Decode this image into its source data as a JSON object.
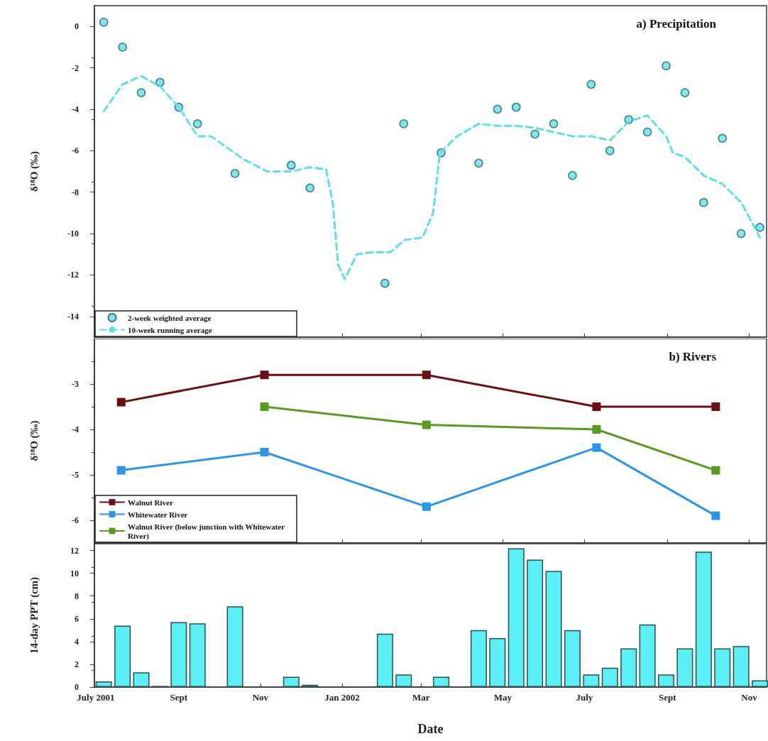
{
  "chart_data": [
    {
      "type": "scatter",
      "title": "a) Precipitation",
      "ylabel": "δ¹⁸O (‰)",
      "xlim": [
        "2001-06-30",
        "2002-11-14"
      ],
      "xticks": [
        {
          "value": "2001-07-01",
          "label": null
        },
        {
          "value": "2001-09-01",
          "label": null
        },
        {
          "value": "2001-11-01",
          "label": null
        },
        {
          "value": "2002-01-01",
          "label": null
        },
        {
          "value": "2002-03-01",
          "label": null
        },
        {
          "value": "2002-05-01",
          "label": null
        },
        {
          "value": "2002-07-01",
          "label": null
        },
        {
          "value": "2002-09-01",
          "label": null
        },
        {
          "value": "2002-11-01",
          "label": null
        }
      ],
      "ylim": [
        -15,
        1
      ],
      "yticks": [
        -14,
        -12,
        -10,
        -8,
        -6,
        -4,
        -2,
        0
      ],
      "tick_labels": "y",
      "legend": "bottom left",
      "grid": false,
      "series": [
        {
          "type": "scatter",
          "name": "2-week weighted average",
          "color": "#5ce1e6",
          "marker": "circle",
          "x": [
            "2001-07-07",
            "2001-07-21",
            "2001-08-04",
            "2001-08-18",
            "2001-09-01",
            "2001-09-15",
            "2001-10-13",
            "2001-11-24",
            "2001-12-08",
            "2002-02-02",
            "2002-02-16",
            "2002-03-16",
            "2002-04-13",
            "2002-04-27",
            "2002-05-11",
            "2002-05-25",
            "2002-06-08",
            "2002-06-22",
            "2002-07-06",
            "2002-07-20",
            "2002-08-03",
            "2002-08-17",
            "2002-08-31",
            "2002-09-14",
            "2002-09-28",
            "2002-10-12",
            "2002-10-26",
            "2002-11-09"
          ],
          "values": [
            0.2,
            -1.0,
            -3.2,
            -2.7,
            -3.9,
            -4.7,
            -7.1,
            -6.7,
            -7.8,
            -12.4,
            -4.7,
            -6.1,
            -6.6,
            -4.0,
            -3.9,
            -5.2,
            -4.7,
            -7.2,
            -2.8,
            -6.0,
            -4.5,
            -5.1,
            -1.9,
            -3.2,
            -8.5,
            -5.4,
            -10.0,
            -9.7
          ]
        },
        {
          "type": "line",
          "name": "10-week running average",
          "color": "#5ce1e6",
          "marker": "none",
          "line_style": "dashed",
          "x": [
            "2001-07-07",
            "2001-07-21",
            "2001-08-04",
            "2001-08-18",
            "2001-09-01",
            "2001-09-15",
            "2001-09-25",
            "2001-10-06",
            "2001-10-19",
            "2001-11-06",
            "2001-11-24",
            "2001-12-08",
            "2001-12-20",
            "2001-12-25",
            "2001-12-29",
            "2002-01-03",
            "2002-01-12",
            "2002-01-24",
            "2002-02-06",
            "2002-02-17",
            "2002-03-02",
            "2002-03-10",
            "2002-03-15",
            "2002-03-28",
            "2002-04-13",
            "2002-04-27",
            "2002-05-11",
            "2002-05-25",
            "2002-06-08",
            "2002-06-22",
            "2002-07-06",
            "2002-07-20",
            "2002-08-03",
            "2002-08-17",
            "2002-08-31",
            "2002-09-05",
            "2002-09-14",
            "2002-09-28",
            "2002-10-12",
            "2002-10-26",
            "2002-11-01",
            "2002-11-09"
          ],
          "values": [
            -4.1,
            -2.8,
            -2.4,
            -2.9,
            -3.9,
            -5.3,
            -5.3,
            -5.8,
            -6.4,
            -7.0,
            -7.0,
            -6.8,
            -6.9,
            -8.5,
            -11.5,
            -12.2,
            -11.0,
            -10.9,
            -10.9,
            -10.3,
            -10.2,
            -9.0,
            -6.1,
            -5.3,
            -4.7,
            -4.8,
            -4.8,
            -4.9,
            -5.1,
            -5.3,
            -5.3,
            -5.5,
            -4.6,
            -4.3,
            -5.3,
            -6.1,
            -6.3,
            -7.2,
            -7.6,
            -8.5,
            -9.2,
            -10.2
          ]
        }
      ]
    },
    {
      "type": "line",
      "title": "b) Rivers",
      "ylabel": "δ¹⁸O (‰)",
      "xlim": [
        "2001-06-30",
        "2002-11-14"
      ],
      "xticks": [
        {
          "value": "2001-07-01",
          "label": null
        },
        {
          "value": "2001-09-01",
          "label": null
        },
        {
          "value": "2001-11-01",
          "label": null
        },
        {
          "value": "2002-01-01",
          "label": null
        },
        {
          "value": "2002-03-01",
          "label": null
        },
        {
          "value": "2002-05-01",
          "label": null
        },
        {
          "value": "2002-07-01",
          "label": null
        },
        {
          "value": "2002-09-01",
          "label": null
        },
        {
          "value": "2002-11-01",
          "label": null
        }
      ],
      "ylim": [
        -6.5,
        -2
      ],
      "yticks": [
        -6,
        -5,
        -4,
        -3
      ],
      "tick_labels": "y",
      "legend": "bottom left",
      "grid": false,
      "marker": "square",
      "line_style": "solid",
      "series": [
        {
          "name": "Walnut River",
          "color": "#6b0f12",
          "x": [
            "2001-07-20",
            "2001-11-04",
            "2002-03-05",
            "2002-07-10",
            "2002-10-07"
          ],
          "values": [
            -3.4,
            -2.8,
            -2.8,
            -3.5,
            -3.5
          ]
        },
        {
          "name": "Whitewater River",
          "color": "#2a96ea",
          "x": [
            "2001-07-20",
            "2001-11-04",
            "2002-03-05",
            "2002-07-10",
            "2002-10-07"
          ],
          "values": [
            -4.9,
            -4.5,
            -5.7,
            -4.4,
            -5.9
          ]
        },
        {
          "name": "Walnut River (below junction with Whitewater River)",
          "color": "#5a9a1e",
          "x": [
            "2001-11-04",
            "2002-03-05",
            "2002-07-10",
            "2002-10-07"
          ],
          "values": [
            -3.5,
            -3.9,
            -4.0,
            -4.9
          ]
        }
      ]
    },
    {
      "type": "bar",
      "xlabel": "Date",
      "ylabel": "14-day PPT (cm)",
      "xlim": [
        "2001-06-30",
        "2002-11-14"
      ],
      "xticks": [
        {
          "value": "2001-07-01",
          "label": "July 2001"
        },
        {
          "value": "2001-09-01",
          "label": "Sept"
        },
        {
          "value": "2001-11-01",
          "label": "Nov"
        },
        {
          "value": "2002-01-01",
          "label": "Jan 2002"
        },
        {
          "value": "2002-03-01",
          "label": "Mar"
        },
        {
          "value": "2002-05-01",
          "label": "May"
        },
        {
          "value": "2002-07-01",
          "label": "July"
        },
        {
          "value": "2002-09-01",
          "label": "Sept"
        },
        {
          "value": "2002-11-01",
          "label": "Nov"
        }
      ],
      "ylim": [
        0,
        12.6
      ],
      "yticks": [
        0,
        2,
        4,
        6,
        8,
        10,
        12
      ],
      "grid": false,
      "color": "#5af0f5",
      "x": [
        "2001-07-07",
        "2001-07-21",
        "2001-08-04",
        "2001-08-18",
        "2001-09-01",
        "2001-09-15",
        "2001-10-13",
        "2001-11-24",
        "2001-12-08",
        "2002-02-02",
        "2002-02-16",
        "2002-03-16",
        "2002-04-13",
        "2002-04-27",
        "2002-05-11",
        "2002-05-25",
        "2002-06-08",
        "2002-06-22",
        "2002-07-06",
        "2002-07-20",
        "2002-08-03",
        "2002-08-17",
        "2002-08-31",
        "2002-09-14",
        "2002-09-28",
        "2002-10-12",
        "2002-10-26",
        "2002-11-09"
      ],
      "values": [
        0.5,
        5.4,
        1.3,
        0.1,
        5.7,
        5.6,
        7.1,
        0.9,
        0.2,
        4.7,
        1.1,
        0.9,
        5.0,
        4.3,
        12.2,
        11.2,
        10.2,
        5.0,
        1.1,
        1.7,
        3.4,
        5.5,
        1.1,
        3.4,
        11.9,
        3.4,
        3.6,
        0.6
      ]
    }
  ]
}
